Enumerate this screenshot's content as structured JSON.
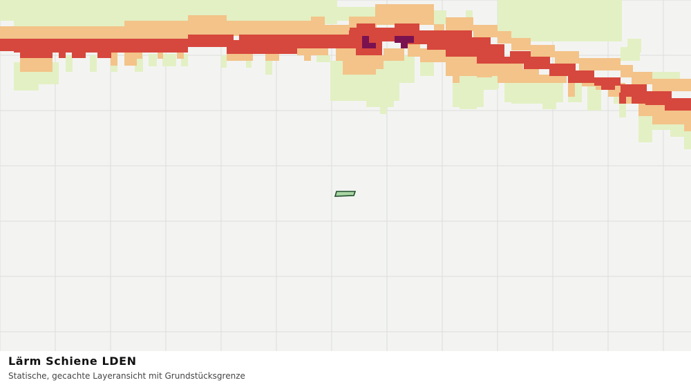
{
  "layer": {
    "title": "Lärm Schiene LDEN",
    "subtitle": "Statische, gecachte Layeransicht mit Grundstücksgrenze"
  },
  "colors": {
    "background": "#f3f4f2",
    "grid": "#dcdcdc",
    "band_light": "#e3f0c4",
    "band_mid": "#f3c389",
    "band_high": "#d6473d",
    "band_max": "#7a1250",
    "parcel_fill": "#a8d5a2",
    "parcel_stroke": "#1f4d2b"
  }
}
